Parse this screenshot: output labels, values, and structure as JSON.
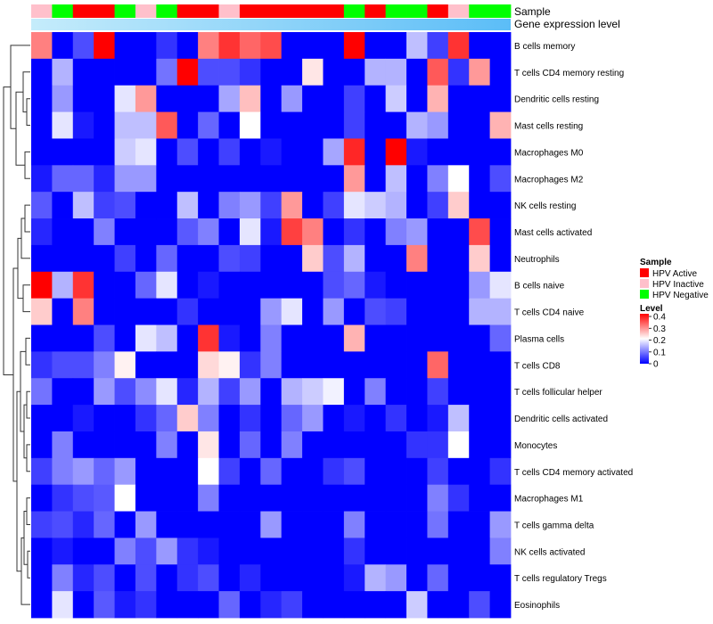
{
  "chart_data": {
    "type": "heatmap",
    "annotation_tracks": [
      {
        "name": "Sample",
        "values": [
          "HPV Inactive",
          "HPV Negative",
          "HPV Active",
          "HPV Active",
          "HPV Negative",
          "HPV Inactive",
          "HPV Negative",
          "HPV Active",
          "HPV Active",
          "HPV Inactive",
          "HPV Active",
          "HPV Active",
          "HPV Active",
          "HPV Active",
          "HPV Active",
          "HPV Negative",
          "HPV Active",
          "HPV Negative",
          "HPV Negative",
          "HPV Active",
          "HPV Inactive",
          "HPV Negative",
          "HPV Negative"
        ]
      },
      {
        "name": "Gene expression level",
        "gradient": [
          "#c5ecfb",
          "#5bbdf7"
        ]
      }
    ],
    "legend": {
      "sample_title": "Sample",
      "sample_items": [
        {
          "label": "HPV Active",
          "color": "#ff0000"
        },
        {
          "label": "HPV Inactive",
          "color": "#ffc0cb"
        },
        {
          "label": "HPV Negative",
          "color": "#00ff00"
        }
      ],
      "level_title": "Level",
      "level_ticks": [
        "0.4",
        "0.3",
        "0.2",
        "0.1",
        "0"
      ],
      "level_range": [
        0,
        0.4
      ],
      "colors": {
        "low": "#0000ff",
        "mid": "#ffffff",
        "high": "#ff0000",
        "mid_value": 0.2
      }
    },
    "rows": [
      {
        "label": "B cells memory",
        "values": [
          0.3,
          0.0,
          0.06,
          0.4,
          0.0,
          0.0,
          0.04,
          0.0,
          0.3,
          0.36,
          0.32,
          0.34,
          0.0,
          0.0,
          0.0,
          0.4,
          0.0,
          0.0,
          0.15,
          0.05,
          0.36,
          0.0,
          0.0
        ]
      },
      {
        "label": "T cells CD4 memory resting",
        "values": [
          0.0,
          0.14,
          0.0,
          0.0,
          0.0,
          0.0,
          0.09,
          0.4,
          0.06,
          0.06,
          0.04,
          0.0,
          0.0,
          0.22,
          0.0,
          0.0,
          0.14,
          0.14,
          0.0,
          0.33,
          0.04,
          0.28,
          0.0
        ]
      },
      {
        "label": "Dendritic cells resting",
        "values": [
          0.0,
          0.12,
          0.0,
          0.0,
          0.18,
          0.28,
          0.0,
          0.0,
          0.0,
          0.13,
          0.25,
          0.0,
          0.12,
          0.0,
          0.0,
          0.05,
          0.0,
          0.16,
          0.0,
          0.26,
          0.0,
          0.0,
          0.0
        ]
      },
      {
        "label": "Mast cells resting",
        "values": [
          0.0,
          0.18,
          0.02,
          0.0,
          0.15,
          0.15,
          0.33,
          0.0,
          0.08,
          0.0,
          0.2,
          0.0,
          0.0,
          0.0,
          0.0,
          0.05,
          0.0,
          0.0,
          0.14,
          0.12,
          0.0,
          0.0,
          0.26
        ]
      },
      {
        "label": "Macrophages M0",
        "values": [
          0.0,
          0.0,
          0.0,
          0.0,
          0.16,
          0.18,
          0.0,
          0.06,
          0.0,
          0.05,
          0.0,
          0.02,
          0.0,
          0.0,
          0.13,
          0.37,
          0.0,
          0.4,
          0.02,
          0.0,
          0.0,
          0.0,
          0.0
        ]
      },
      {
        "label": "Macrophages M2",
        "values": [
          0.02,
          0.08,
          0.08,
          0.03,
          0.12,
          0.12,
          0.0,
          0.0,
          0.0,
          0.0,
          0.0,
          0.0,
          0.0,
          0.0,
          0.0,
          0.28,
          0.0,
          0.15,
          0.0,
          0.1,
          0.2,
          0.0,
          0.06
        ]
      },
      {
        "label": "NK cells resting",
        "values": [
          0.07,
          0.0,
          0.15,
          0.05,
          0.06,
          0.0,
          0.0,
          0.15,
          0.0,
          0.1,
          0.12,
          0.05,
          0.28,
          0.0,
          0.05,
          0.18,
          0.16,
          0.14,
          0.0,
          0.05,
          0.24,
          0.0,
          0.0
        ]
      },
      {
        "label": "Mast cells activated",
        "values": [
          0.03,
          0.0,
          0.0,
          0.1,
          0.0,
          0.0,
          0.0,
          0.07,
          0.1,
          0.0,
          0.18,
          0.02,
          0.35,
          0.3,
          0.0,
          0.04,
          0.0,
          0.1,
          0.12,
          0.0,
          0.0,
          0.34,
          0.0
        ]
      },
      {
        "label": "Neutrophils",
        "values": [
          0.0,
          0.0,
          0.0,
          0.0,
          0.05,
          0.0,
          0.08,
          0.0,
          0.0,
          0.06,
          0.05,
          0.0,
          0.0,
          0.24,
          0.06,
          0.14,
          0.0,
          0.0,
          0.3,
          0.0,
          0.0,
          0.24,
          0.0
        ]
      },
      {
        "label": "B cells naive",
        "values": [
          0.4,
          0.14,
          0.36,
          0.0,
          0.0,
          0.08,
          0.18,
          0.0,
          0.02,
          0.0,
          0.0,
          0.0,
          0.0,
          0.0,
          0.06,
          0.08,
          0.02,
          0.0,
          0.0,
          0.0,
          0.0,
          0.12,
          0.18
        ]
      },
      {
        "label": "T cells CD4 naive",
        "values": [
          0.24,
          0.0,
          0.3,
          0.0,
          0.0,
          0.0,
          0.0,
          0.04,
          0.0,
          0.0,
          0.0,
          0.12,
          0.18,
          0.0,
          0.12,
          0.0,
          0.06,
          0.05,
          0.0,
          0.0,
          0.0,
          0.14,
          0.14
        ]
      },
      {
        "label": "Plasma cells",
        "values": [
          0.0,
          0.0,
          0.0,
          0.06,
          0.0,
          0.18,
          0.15,
          0.0,
          0.36,
          0.02,
          0.0,
          0.1,
          0.0,
          0.0,
          0.0,
          0.26,
          0.0,
          0.0,
          0.0,
          0.0,
          0.0,
          0.0,
          0.08
        ]
      },
      {
        "label": "T cells CD8",
        "values": [
          0.04,
          0.06,
          0.06,
          0.1,
          0.21,
          0.0,
          0.0,
          0.0,
          0.23,
          0.21,
          0.04,
          0.1,
          0.0,
          0.0,
          0.0,
          0.0,
          0.0,
          0.0,
          0.0,
          0.32,
          0.0,
          0.0,
          0.0
        ]
      },
      {
        "label": "T cells follicular helper",
        "values": [
          0.09,
          0.0,
          0.0,
          0.12,
          0.06,
          0.11,
          0.18,
          0.03,
          0.14,
          0.05,
          0.12,
          0.0,
          0.14,
          0.16,
          0.19,
          0.0,
          0.1,
          0.0,
          0.0,
          0.05,
          0.0,
          0.0,
          0.0
        ]
      },
      {
        "label": "Dendritic cells activated",
        "values": [
          0.0,
          0.0,
          0.02,
          0.0,
          0.0,
          0.04,
          0.08,
          0.24,
          0.1,
          0.0,
          0.04,
          0.0,
          0.08,
          0.12,
          0.0,
          0.02,
          0.0,
          0.04,
          0.0,
          0.02,
          0.15,
          0.0,
          0.0
        ]
      },
      {
        "label": "Monocytes",
        "values": [
          0.0,
          0.1,
          0.0,
          0.0,
          0.0,
          0.0,
          0.1,
          0.0,
          0.22,
          0.0,
          0.08,
          0.0,
          0.1,
          0.0,
          0.0,
          0.0,
          0.0,
          0.0,
          0.04,
          0.04,
          0.2,
          0.0,
          0.0
        ]
      },
      {
        "label": "T cells CD4 memory activated",
        "values": [
          0.05,
          0.1,
          0.12,
          0.08,
          0.12,
          0.0,
          0.0,
          0.0,
          0.2,
          0.05,
          0.0,
          0.08,
          0.0,
          0.0,
          0.04,
          0.06,
          0.0,
          0.0,
          0.0,
          0.05,
          0.0,
          0.0,
          0.04
        ]
      },
      {
        "label": "Macrophages M1",
        "values": [
          0.0,
          0.04,
          0.06,
          0.07,
          0.2,
          0.0,
          0.0,
          0.0,
          0.1,
          0.0,
          0.0,
          0.0,
          0.0,
          0.0,
          0.0,
          0.0,
          0.0,
          0.0,
          0.0,
          0.1,
          0.04,
          0.0,
          0.0
        ]
      },
      {
        "label": "T cells gamma delta",
        "values": [
          0.05,
          0.06,
          0.03,
          0.08,
          0.0,
          0.12,
          0.0,
          0.0,
          0.0,
          0.0,
          0.0,
          0.12,
          0.0,
          0.0,
          0.0,
          0.1,
          0.0,
          0.0,
          0.0,
          0.09,
          0.0,
          0.0,
          0.12
        ]
      },
      {
        "label": "NK cells activated",
        "values": [
          0.0,
          0.02,
          0.0,
          0.0,
          0.1,
          0.06,
          0.12,
          0.04,
          0.02,
          0.0,
          0.0,
          0.0,
          0.0,
          0.0,
          0.0,
          0.04,
          0.0,
          0.0,
          0.0,
          0.0,
          0.0,
          0.0,
          0.1
        ]
      },
      {
        "label": "T cells regulatory  Tregs",
        "values": [
          0.0,
          0.1,
          0.03,
          0.06,
          0.0,
          0.06,
          0.0,
          0.04,
          0.06,
          0.0,
          0.03,
          0.0,
          0.0,
          0.0,
          0.0,
          0.02,
          0.14,
          0.12,
          0.0,
          0.08,
          0.0,
          0.0,
          0.0
        ]
      },
      {
        "label": "Eosinophils",
        "values": [
          0.0,
          0.18,
          0.0,
          0.07,
          0.02,
          0.04,
          0.0,
          0.0,
          0.0,
          0.08,
          0.0,
          0.03,
          0.05,
          0.0,
          0.0,
          0.0,
          0.0,
          0.0,
          0.16,
          0.0,
          0.0,
          0.06,
          0.0
        ]
      }
    ]
  }
}
